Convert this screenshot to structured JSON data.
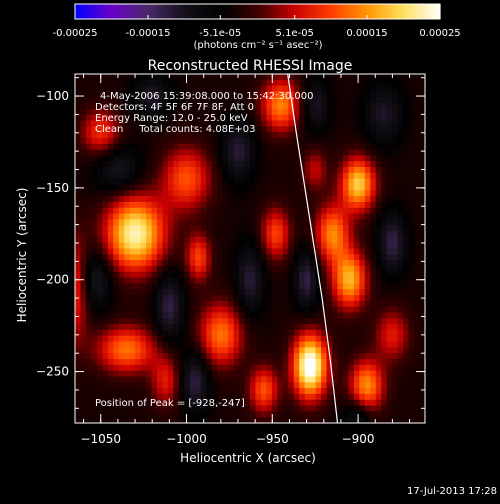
{
  "chart_data": {
    "type": "heatmap",
    "title": "Reconstructed RHESSI Image",
    "xlabel": "Heliocentric X (arcsec)",
    "ylabel": "Heliocentric Y (arcsec)",
    "xlim": [
      -1065,
      -861
    ],
    "ylim": [
      -278,
      -88
    ],
    "x_ticks": [
      -1050,
      -1000,
      -950,
      -900
    ],
    "x_tick_labels": [
      "−1050",
      "−1000",
      "−950",
      "−900"
    ],
    "y_ticks": [
      -250,
      -200,
      -150,
      -100
    ],
    "y_tick_labels": [
      "−250",
      "−200",
      "−150",
      "−100"
    ],
    "colorbar": {
      "range": [
        -0.00025,
        0.00025
      ],
      "ticks": [
        -0.00025,
        -0.00015,
        -5.1e-05,
        5.1e-05,
        0.00015,
        0.00025
      ],
      "tick_labels": [
        "-0.00025",
        "-0.00015",
        "-5.1e-05",
        "5.1e-05",
        "0.00015",
        "0.00025"
      ],
      "unit_label": "(photons cm⁻² s⁻¹ asec⁻²)"
    },
    "annotations": [
      "4-May-2006 15:39:08.000 to 15:42:30.000",
      "Detectors: 4F 5F 6F 7F 8F, Att 0",
      "Energy Range: 12.0 - 25.0 keV",
      "Clean     Total counts: 4.08E+03"
    ],
    "peak_label": "Position of Peak = [-928,-247]",
    "peak": [
      -928,
      -247
    ],
    "colors": {
      "background": "#000000",
      "colormap": [
        "#0000ff",
        "#6a00c8",
        "#4a2a6a",
        "#141018",
        "#000000",
        "#3a0000",
        "#c80000",
        "#ff3c00",
        "#ff9600",
        "#ffe060",
        "#ffffff"
      ]
    },
    "hot_blobs": [
      {
        "x": -1030,
        "y": -175,
        "amp": 0.00026,
        "sx": 12,
        "sy": 14
      },
      {
        "x": -1050,
        "y": -120,
        "amp": 0.00012,
        "sx": 8,
        "sy": 9
      },
      {
        "x": -1035,
        "y": -238,
        "amp": 0.00016,
        "sx": 12,
        "sy": 9
      },
      {
        "x": -1000,
        "y": -145,
        "amp": 0.00014,
        "sx": 10,
        "sy": 12
      },
      {
        "x": -993,
        "y": -188,
        "amp": 0.00013,
        "sx": 5,
        "sy": 9
      },
      {
        "x": -980,
        "y": -230,
        "amp": 0.00016,
        "sx": 9,
        "sy": 12
      },
      {
        "x": -955,
        "y": -260,
        "amp": 0.00014,
        "sx": 6,
        "sy": 9
      },
      {
        "x": -945,
        "y": -105,
        "amp": 0.00017,
        "sx": 8,
        "sy": 10
      },
      {
        "x": -948,
        "y": -175,
        "amp": 0.00013,
        "sx": 6,
        "sy": 10
      },
      {
        "x": -928,
        "y": -247,
        "amp": 0.0003,
        "sx": 7,
        "sy": 12
      },
      {
        "x": -915,
        "y": -175,
        "amp": 0.00017,
        "sx": 7,
        "sy": 11
      },
      {
        "x": -905,
        "y": -200,
        "amp": 0.0002,
        "sx": 7,
        "sy": 11
      },
      {
        "x": -900,
        "y": -148,
        "amp": 0.00022,
        "sx": 7,
        "sy": 10
      },
      {
        "x": -895,
        "y": -258,
        "amp": 0.00018,
        "sx": 7,
        "sy": 10
      },
      {
        "x": -880,
        "y": -230,
        "amp": 0.0001,
        "sx": 7,
        "sy": 10
      },
      {
        "x": -1065,
        "y": -205,
        "amp": 0.00012,
        "sx": 6,
        "sy": 20
      },
      {
        "x": -1012,
        "y": -255,
        "amp": 0.0001,
        "sx": 6,
        "sy": 10
      },
      {
        "x": -925,
        "y": -140,
        "amp": 8e-05,
        "sx": 5,
        "sy": 8
      }
    ],
    "cold_blobs": [
      {
        "x": -1040,
        "y": -140,
        "amp": -8e-05,
        "sx": 10,
        "sy": 10
      },
      {
        "x": -1053,
        "y": -200,
        "amp": -9e-05,
        "sx": 7,
        "sy": 12
      },
      {
        "x": -1010,
        "y": -215,
        "amp": -0.0001,
        "sx": 6,
        "sy": 14
      },
      {
        "x": -995,
        "y": -255,
        "amp": -0.0001,
        "sx": 6,
        "sy": 12
      },
      {
        "x": -970,
        "y": -130,
        "amp": -9e-05,
        "sx": 7,
        "sy": 12
      },
      {
        "x": -963,
        "y": -200,
        "amp": -9e-05,
        "sx": 6,
        "sy": 14
      },
      {
        "x": -930,
        "y": -200,
        "amp": -0.0001,
        "sx": 5,
        "sy": 12
      },
      {
        "x": -925,
        "y": -105,
        "amp": -8e-05,
        "sx": 6,
        "sy": 10
      },
      {
        "x": -885,
        "y": -110,
        "amp": -8e-05,
        "sx": 8,
        "sy": 12
      },
      {
        "x": -880,
        "y": -180,
        "amp": -0.0001,
        "sx": 6,
        "sy": 12
      },
      {
        "x": -900,
        "y": -275,
        "amp": -8e-05,
        "sx": 6,
        "sy": 8
      },
      {
        "x": -1020,
        "y": -100,
        "amp": -8e-05,
        "sx": 8,
        "sy": 8
      }
    ],
    "limb_curve": {
      "x": [
        -941,
        -936,
        -931,
        -926,
        -921,
        -916,
        -912
      ],
      "y": [
        -88,
        -120,
        -150,
        -180,
        -210,
        -245,
        -278
      ]
    }
  },
  "footer": {
    "date_stamp": "17-Jul-2013 17:28"
  }
}
